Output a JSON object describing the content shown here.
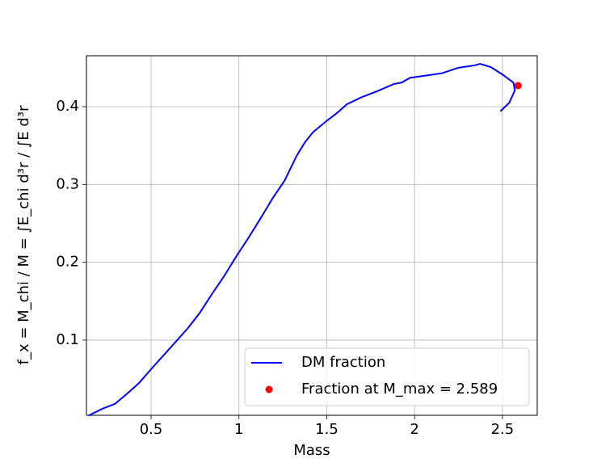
{
  "chart_data": {
    "type": "line",
    "xlabel": "Mass",
    "ylabel": "f_x = M_chi / M = ∫E_chi d³r / ∫E d³r",
    "xlim": [
      0.132,
      2.698
    ],
    "ylim": [
      0.0034,
      0.4654
    ],
    "xticks": [
      0.5,
      1.0,
      1.5,
      2.0,
      2.5
    ],
    "yticks": [
      0.1,
      0.2,
      0.3,
      0.4
    ],
    "grid": true,
    "legend": "lower right",
    "series": [
      {
        "name": "DM fraction",
        "color": "#0000ff",
        "style": "line",
        "x": [
          0.143,
          0.225,
          0.294,
          0.363,
          0.432,
          0.501,
          0.593,
          0.708,
          0.777,
          0.846,
          0.915,
          0.989,
          1.053,
          1.122,
          1.191,
          1.26,
          1.329,
          1.375,
          1.421,
          1.49,
          1.559,
          1.614,
          1.697,
          1.789,
          1.881,
          1.927,
          1.973,
          2.065,
          2.157,
          2.249,
          2.341,
          2.373,
          2.433,
          2.502,
          2.562,
          2.571,
          2.539,
          2.488
        ],
        "values": [
          0.003,
          0.012,
          0.018,
          0.031,
          0.045,
          0.063,
          0.086,
          0.115,
          0.135,
          0.159,
          0.182,
          0.209,
          0.231,
          0.256,
          0.282,
          0.305,
          0.337,
          0.354,
          0.367,
          0.38,
          0.392,
          0.403,
          0.412,
          0.42,
          0.429,
          0.431,
          0.437,
          0.44,
          0.443,
          0.45,
          0.453,
          0.455,
          0.451,
          0.441,
          0.431,
          0.421,
          0.405,
          0.394
        ]
      },
      {
        "name": "Fraction at M_max = 2.589",
        "color": "#ff0000",
        "style": "point",
        "x": [
          2.589
        ],
        "values": [
          0.427
        ]
      }
    ]
  }
}
